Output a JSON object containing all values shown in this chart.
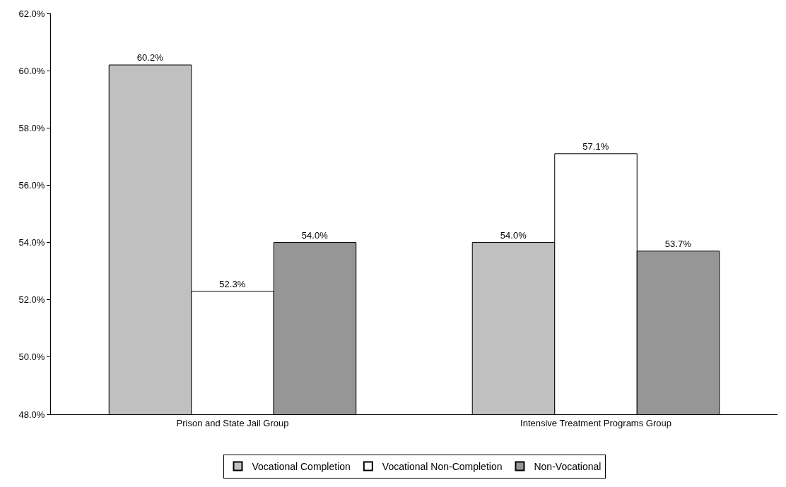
{
  "chart_data": {
    "type": "bar",
    "categories": [
      "Prison and State Jail Group",
      "Intensive Treatment Programs Group"
    ],
    "series": [
      {
        "name": "Vocational Completion",
        "color": "#c0c0c0",
        "values": [
          60.2,
          54.0
        ],
        "value_labels": [
          "60.2%",
          "54.0%"
        ]
      },
      {
        "name": "Vocational Non-Completion",
        "color": "#ffffff",
        "values": [
          52.3,
          57.1
        ],
        "value_labels": [
          "52.3%",
          "57.1%"
        ]
      },
      {
        "name": "Non-Vocational",
        "color": "#969696",
        "values": [
          54.0,
          53.7
        ],
        "value_labels": [
          "54.0%",
          "53.7%"
        ]
      }
    ],
    "ylim": [
      48,
      62
    ],
    "yticks": [
      {
        "value": 48,
        "label": "48.0%"
      },
      {
        "value": 50,
        "label": "50.0%"
      },
      {
        "value": 52,
        "label": "52.0%"
      },
      {
        "value": 54,
        "label": "54.0%"
      },
      {
        "value": 56,
        "label": "56.0%"
      },
      {
        "value": 58,
        "label": "58.0%"
      },
      {
        "value": 60,
        "label": "60.0%"
      },
      {
        "value": 62,
        "label": "62.0%"
      }
    ],
    "grid": false,
    "legend": "bottom"
  }
}
